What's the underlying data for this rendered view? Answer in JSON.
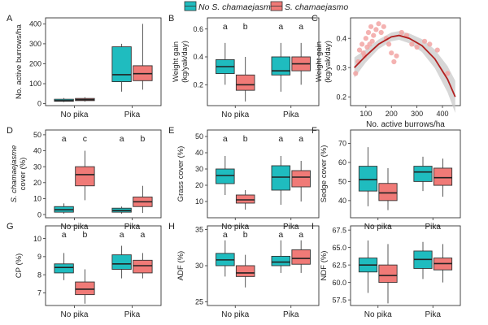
{
  "legend": {
    "items": [
      {
        "label": "No S. chamaejasmo",
        "color": "#1fbcbf"
      },
      {
        "label": "S. chamaejasmo",
        "color": "#f07a77"
      }
    ]
  },
  "colors": {
    "no_sc": "#1fbcbf",
    "sc": "#f07a77",
    "curve": "#b21f1f",
    "band": "#c9c9c9",
    "scatter": "#f2a5a3"
  },
  "chart_data": [
    {
      "id": "A",
      "type": "box",
      "panel_label": "A",
      "ylabel": "No. active burrows/ha",
      "categories": [
        "No pika",
        "Pika"
      ],
      "ylim": [
        -10,
        430
      ],
      "yticks": [
        0,
        100,
        200,
        300,
        400
      ],
      "boxes": [
        {
          "group": "No pika",
          "series": "No S. chamaejasmo",
          "min": 8,
          "q1": 12,
          "median": 15,
          "q3": 22,
          "max": 28
        },
        {
          "group": "No pika",
          "series": "S. chamaejasmo",
          "min": 10,
          "q1": 15,
          "median": 20,
          "q3": 26,
          "max": 32
        },
        {
          "group": "Pika",
          "series": "No S. chamaejasmo",
          "min": 60,
          "q1": 110,
          "median": 145,
          "q3": 285,
          "max": 300
        },
        {
          "group": "Pika",
          "series": "S. chamaejasmo",
          "min": 70,
          "q1": 115,
          "median": 150,
          "q3": 190,
          "max": 400
        }
      ],
      "letters": []
    },
    {
      "id": "B",
      "type": "box",
      "panel_label": "B",
      "ylabel": "Weight gain (kg/yak/day)",
      "categories": [
        "No pika",
        "Pika"
      ],
      "ylim": [
        0.05,
        0.68
      ],
      "yticks": [
        0.2,
        0.4,
        0.6
      ],
      "boxes": [
        {
          "group": "No pika",
          "series": "No S. chamaejasmo",
          "min": 0.2,
          "q1": 0.28,
          "median": 0.33,
          "q3": 0.38,
          "max": 0.5
        },
        {
          "group": "No pika",
          "series": "S. chamaejasmo",
          "min": 0.08,
          "q1": 0.16,
          "median": 0.2,
          "q3": 0.27,
          "max": 0.4
        },
        {
          "group": "Pika",
          "series": "No S. chamaejasmo",
          "min": 0.15,
          "q1": 0.27,
          "median": 0.3,
          "q3": 0.4,
          "max": 0.5
        },
        {
          "group": "Pika",
          "series": "S. chamaejasmo",
          "min": 0.2,
          "q1": 0.3,
          "median": 0.35,
          "q3": 0.4,
          "max": 0.5
        }
      ],
      "letters": [
        "a",
        "b",
        "a",
        "a"
      ]
    },
    {
      "id": "C",
      "type": "scatter",
      "panel_label": "C",
      "xlabel": "No. active burrows/ha",
      "ylabel": "Weight gain (kg/yak/day)",
      "xlim": [
        40,
        470
      ],
      "ylim": [
        0.17,
        0.47
      ],
      "xticks": [
        100,
        200,
        300,
        400
      ],
      "yticks": [
        0.2,
        0.3,
        0.4
      ],
      "points": [
        [
          60,
          0.28
        ],
        [
          70,
          0.32
        ],
        [
          75,
          0.36
        ],
        [
          85,
          0.38
        ],
        [
          90,
          0.35
        ],
        [
          95,
          0.34
        ],
        [
          100,
          0.4
        ],
        [
          105,
          0.37
        ],
        [
          110,
          0.42
        ],
        [
          115,
          0.38
        ],
        [
          120,
          0.44
        ],
        [
          125,
          0.39
        ],
        [
          130,
          0.41
        ],
        [
          140,
          0.43
        ],
        [
          150,
          0.45
        ],
        [
          160,
          0.42
        ],
        [
          170,
          0.44
        ],
        [
          180,
          0.4
        ],
        [
          190,
          0.38
        ],
        [
          200,
          0.35
        ],
        [
          210,
          0.32
        ],
        [
          220,
          0.34
        ],
        [
          240,
          0.42
        ],
        [
          260,
          0.41
        ],
        [
          280,
          0.38
        ],
        [
          300,
          0.37
        ],
        [
          330,
          0.39
        ],
        [
          350,
          0.38
        ],
        [
          380,
          0.36
        ],
        [
          420,
          0.28
        ]
      ],
      "fit": {
        "x": [
          55,
          100,
          150,
          200,
          230,
          270,
          320,
          370,
          420,
          450
        ],
        "y": [
          0.3,
          0.34,
          0.38,
          0.405,
          0.41,
          0.4,
          0.375,
          0.33,
          0.26,
          0.2
        ]
      },
      "band_width": [
        0.035,
        0.022,
        0.016,
        0.015,
        0.015,
        0.017,
        0.022,
        0.032,
        0.045,
        0.055
      ]
    },
    {
      "id": "D",
      "type": "box",
      "panel_label": "D",
      "ylabel": "S. chamaejasme cover (%)",
      "categories": [
        "No pika",
        "Pika"
      ],
      "ylim": [
        -2,
        53
      ],
      "yticks": [
        0,
        10,
        20,
        30,
        40,
        50
      ],
      "boxes": [
        {
          "group": "No pika",
          "series": "No S. chamaejasmo",
          "min": 0.5,
          "q1": 1.5,
          "median": 3,
          "q3": 5,
          "max": 7
        },
        {
          "group": "No pika",
          "series": "S. chamaejasmo",
          "min": 9,
          "q1": 18,
          "median": 25,
          "q3": 30,
          "max": 40
        },
        {
          "group": "Pika",
          "series": "No S. chamaejasmo",
          "min": 0.5,
          "q1": 1.5,
          "median": 2.5,
          "q3": 4,
          "max": 5
        },
        {
          "group": "Pika",
          "series": "S. chamaejasmo",
          "min": 1,
          "q1": 5,
          "median": 8,
          "q3": 11,
          "max": 18
        }
      ],
      "letters": [
        "a",
        "c",
        "a",
        "b"
      ]
    },
    {
      "id": "E",
      "type": "box",
      "panel_label": "E",
      "ylabel": "Grass cover (%)",
      "categories": [
        "No pika",
        "Pika"
      ],
      "ylim": [
        0,
        54
      ],
      "yticks": [
        10,
        20,
        30,
        40,
        50
      ],
      "boxes": [
        {
          "group": "No pika",
          "series": "No S. chamaejasmo",
          "min": 14,
          "q1": 21,
          "median": 26,
          "q3": 30,
          "max": 38
        },
        {
          "group": "No pika",
          "series": "S. chamaejasmo",
          "min": 5,
          "q1": 9,
          "median": 11,
          "q3": 14,
          "max": 17
        },
        {
          "group": "Pika",
          "series": "No S. chamaejasmo",
          "min": 8,
          "q1": 17,
          "median": 25,
          "q3": 32,
          "max": 38
        },
        {
          "group": "Pika",
          "series": "S. chamaejasmo",
          "min": 10,
          "q1": 19,
          "median": 25,
          "q3": 29,
          "max": 35
        }
      ],
      "letters": [
        "a",
        "b",
        "a",
        "a"
      ]
    },
    {
      "id": "F",
      "type": "box",
      "panel_label": "F",
      "ylabel": "Sedge cover (%)",
      "categories": [
        "No pika",
        "Pika"
      ],
      "ylim": [
        31,
        77
      ],
      "yticks": [
        40,
        50,
        60,
        70
      ],
      "boxes": [
        {
          "group": "No pika",
          "series": "No S. chamaejasmo",
          "min": 37,
          "q1": 45,
          "median": 51,
          "q3": 58,
          "max": 68
        },
        {
          "group": "No pika",
          "series": "S. chamaejasmo",
          "min": 35,
          "q1": 40,
          "median": 44,
          "q3": 49,
          "max": 57
        },
        {
          "group": "Pika",
          "series": "No S. chamaejasmo",
          "min": 45,
          "q1": 50,
          "median": 55,
          "q3": 58,
          "max": 63
        },
        {
          "group": "Pika",
          "series": "S. chamaejasmo",
          "min": 42,
          "q1": 48,
          "median": 52,
          "q3": 57,
          "max": 62
        }
      ],
      "letters": []
    },
    {
      "id": "G",
      "type": "box",
      "panel_label": "G",
      "ylabel": "CP (%)",
      "categories": [
        "No pika",
        "Pika"
      ],
      "ylim": [
        6.3,
        10.7
      ],
      "yticks": [
        7,
        8,
        9,
        10
      ],
      "boxes": [
        {
          "group": "No pika",
          "series": "No S. chamaejasmo",
          "min": 7.7,
          "q1": 8.1,
          "median": 8.4,
          "q3": 8.6,
          "max": 9.2
        },
        {
          "group": "No pika",
          "series": "S. chamaejasmo",
          "min": 6.4,
          "q1": 6.9,
          "median": 7.2,
          "q3": 7.6,
          "max": 8.3
        },
        {
          "group": "Pika",
          "series": "No S. chamaejasmo",
          "min": 7.8,
          "q1": 8.3,
          "median": 8.6,
          "q3": 9.1,
          "max": 9.6
        },
        {
          "group": "Pika",
          "series": "S. chamaejasmo",
          "min": 7.8,
          "q1": 8.1,
          "median": 8.5,
          "q3": 8.8,
          "max": 9.2
        }
      ],
      "letters": [
        "a",
        "b",
        "a",
        "a"
      ]
    },
    {
      "id": "H",
      "type": "box",
      "panel_label": "H",
      "ylabel": "ADF (%)",
      "categories": [
        "No pika",
        "Pika"
      ],
      "ylim": [
        24.5,
        35.5
      ],
      "yticks": [
        25,
        30,
        35
      ],
      "boxes": [
        {
          "group": "No pika",
          "series": "No S. chamaejasmo",
          "min": 28.5,
          "q1": 30,
          "median": 30.8,
          "q3": 31.7,
          "max": 33.5
        },
        {
          "group": "No pika",
          "series": "S. chamaejasmo",
          "min": 27,
          "q1": 28.5,
          "median": 29,
          "q3": 30,
          "max": 31.5
        },
        {
          "group": "Pika",
          "series": "No S. chamaejasmo",
          "min": 29,
          "q1": 30,
          "median": 30.5,
          "q3": 31.3,
          "max": 33.5
        },
        {
          "group": "Pika",
          "series": "S. chamaejasmo",
          "min": 29,
          "q1": 30.2,
          "median": 31,
          "q3": 32.2,
          "max": 33.5
        }
      ],
      "letters": [
        "a",
        "b",
        "a",
        "a"
      ]
    },
    {
      "id": "I",
      "type": "box",
      "panel_label": "I",
      "ylabel": "NDF (%)",
      "categories": [
        "No pika",
        "Pika"
      ],
      "ylim": [
        56.7,
        68.1
      ],
      "yticks": [
        57.5,
        60.0,
        62.5,
        65.0,
        67.5
      ],
      "tick_decimals": 1,
      "boxes": [
        {
          "group": "No pika",
          "series": "No S. chamaejasmo",
          "min": 58.5,
          "q1": 61.5,
          "median": 62.5,
          "q3": 63.5,
          "max": 66
        },
        {
          "group": "No pika",
          "series": "S. chamaejasmo",
          "min": 57,
          "q1": 60,
          "median": 61,
          "q3": 62.5,
          "max": 65.5
        },
        {
          "group": "Pika",
          "series": "No S. chamaejasmo",
          "min": 60.5,
          "q1": 62,
          "median": 63.3,
          "q3": 64.5,
          "max": 65.8
        },
        {
          "group": "Pika",
          "series": "S. chamaejasmo",
          "min": 60,
          "q1": 61.8,
          "median": 62.7,
          "q3": 63.5,
          "max": 65.5
        }
      ],
      "letters": []
    }
  ]
}
